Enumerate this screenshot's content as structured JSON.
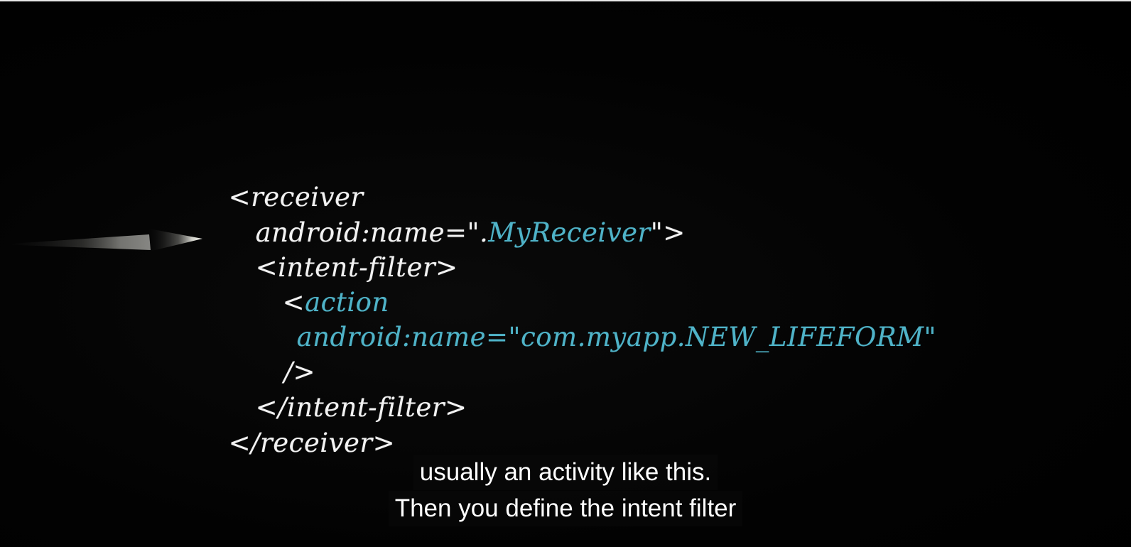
{
  "video": {
    "code": {
      "line1": "<receiver",
      "line2_prefix": "android:name=\".",
      "line2_accent": "MyReceiver",
      "line2_suffix": "\">",
      "line3": "<intent-filter>",
      "line4_prefix": "<",
      "line4_accent": "action",
      "line5": "android:name=\"com.myapp.NEW_LIFEFORM\"",
      "line6": "/>",
      "line7": "</intent-filter>",
      "line8": "</receiver>"
    },
    "captions": {
      "line1": "usually an activity like this.",
      "line2": "Then you define the intent filter"
    },
    "colors": {
      "code_text": "#f2f2f2",
      "code_accent": "#4fb3c8",
      "background": "#020202"
    }
  }
}
